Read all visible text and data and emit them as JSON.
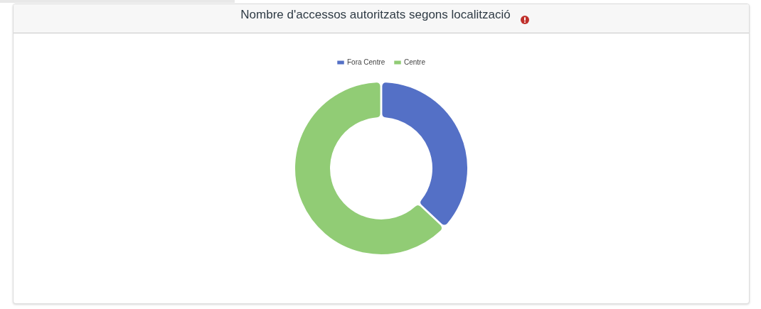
{
  "chart_data": {
    "type": "donut",
    "title": "Nombre d'accessos autoritzats segons localització",
    "categories": [
      "Fora Centre",
      "Centre"
    ],
    "values": [
      37,
      63
    ],
    "colors": [
      "#5470c6",
      "#91cc75"
    ],
    "legend": "top"
  }
}
